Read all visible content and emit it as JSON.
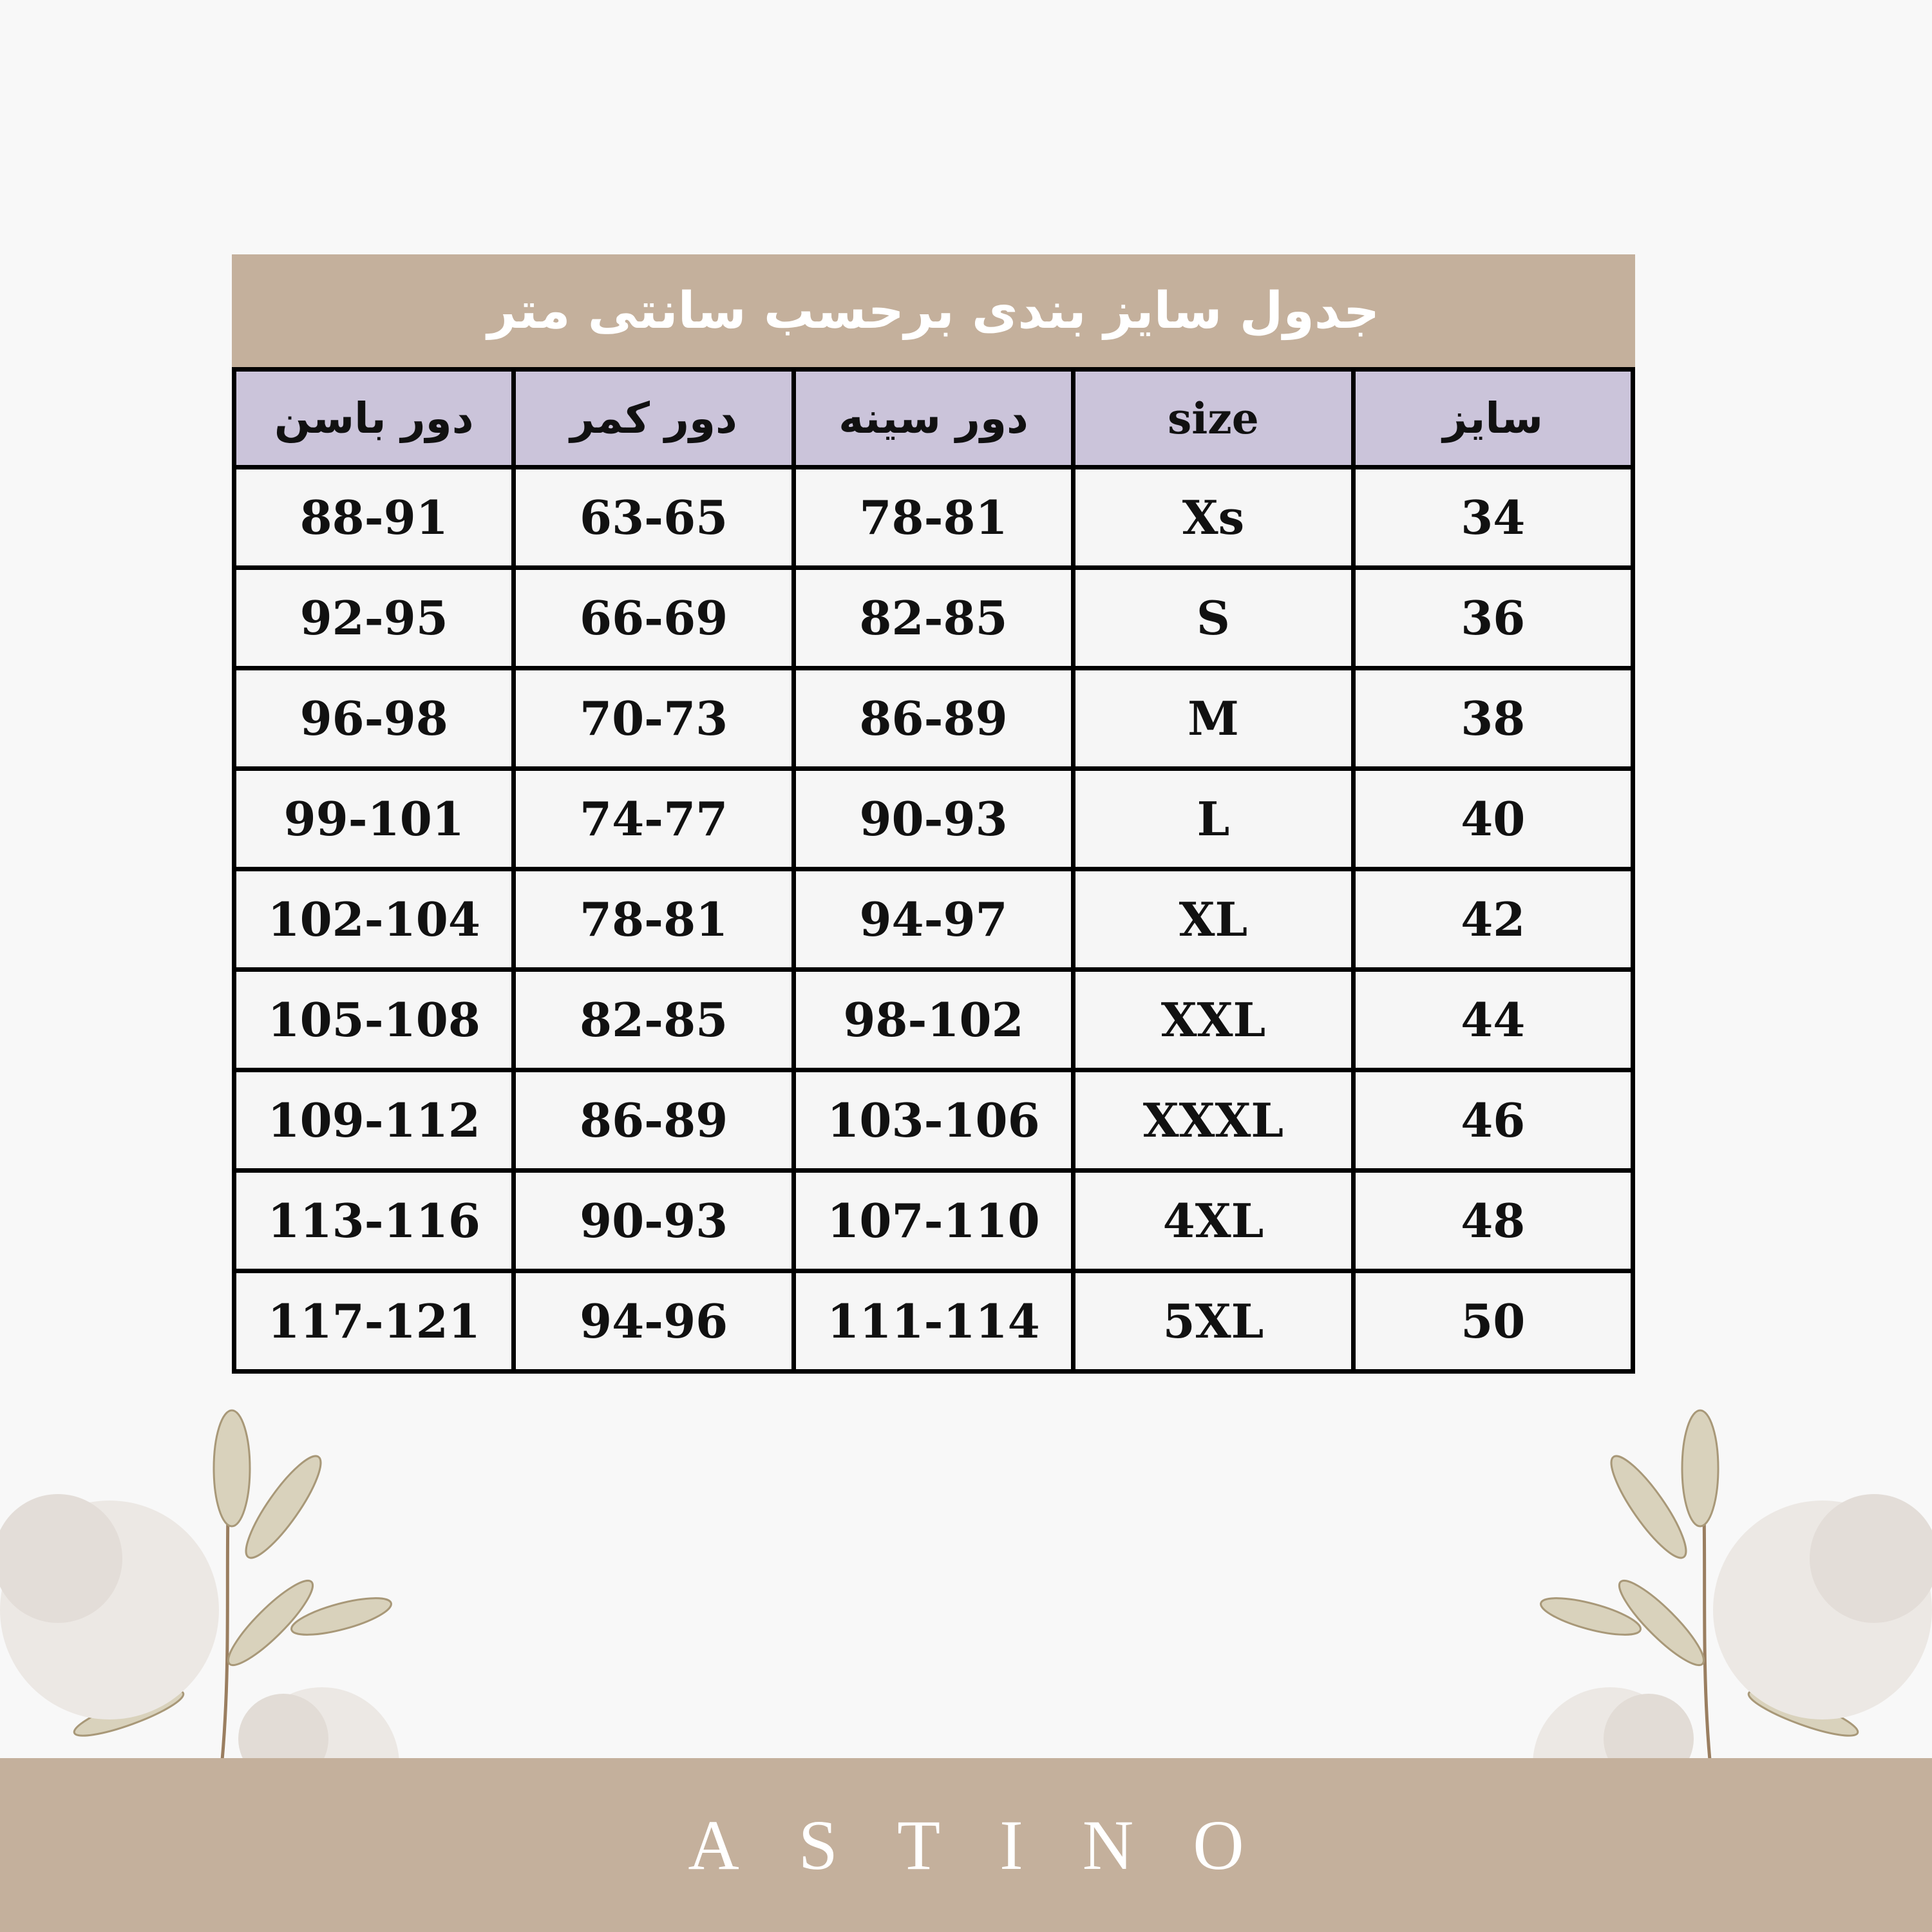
{
  "title": "جدول سایز بندی برحسب سانتی متر",
  "headers": [
    "سایز",
    "size",
    "دور سینه",
    "دور کمر",
    "دور باسن"
  ],
  "rows": [
    [
      "34",
      "Xs",
      "78-81",
      "63-65",
      "88-91"
    ],
    [
      "36",
      "S",
      "82-85",
      "66-69",
      "92-95"
    ],
    [
      "38",
      "M",
      "86-89",
      "70-73",
      "96-98"
    ],
    [
      "40",
      "L",
      "90-93",
      "74-77",
      "99-101"
    ],
    [
      "42",
      "XL",
      "94-97",
      "78-81",
      "102-104"
    ],
    [
      "44",
      "XXL",
      "98-102",
      "82-85",
      "105-108"
    ],
    [
      "46",
      "XXXL",
      "103-106",
      "86-89",
      "109-112"
    ],
    [
      "48",
      "4XL",
      "107-110",
      "90-93",
      "113-116"
    ],
    [
      "50",
      "5XL",
      "111-114",
      "94-96",
      "117-121"
    ]
  ],
  "brand": "ASTINO",
  "colors": {
    "banner": "#c4b09c",
    "header": "#cbc4da",
    "background": "#f8f8f8"
  }
}
